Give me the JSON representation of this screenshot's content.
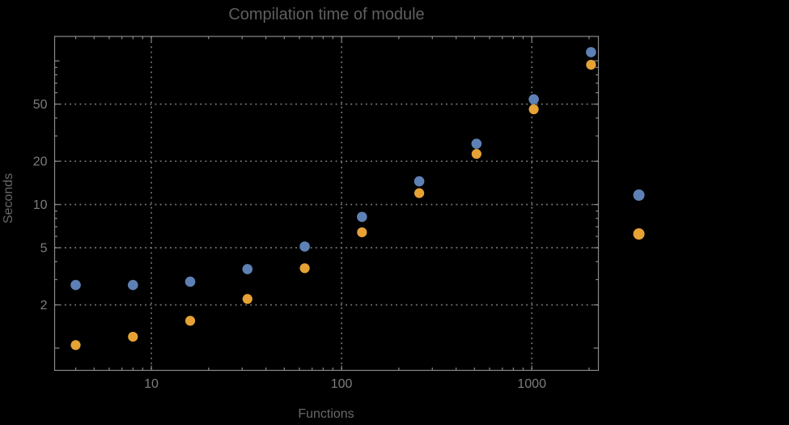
{
  "chart_data": {
    "type": "scatter",
    "title": "Compilation time of module",
    "xlabel": "Functions",
    "ylabel": "Seconds",
    "x_scale": "log",
    "y_scale": "log",
    "x": [
      4,
      8,
      16,
      32,
      64,
      128,
      256,
      512,
      1024,
      2048
    ],
    "series": [
      {
        "name": "blue",
        "color": "#5E81B5",
        "values": [
          2.75,
          2.75,
          2.9,
          3.55,
          5.1,
          8.2,
          14.5,
          26.5,
          54,
          115
        ]
      },
      {
        "name": "orange",
        "color": "#E6A235",
        "values": [
          1.05,
          1.2,
          1.55,
          2.2,
          3.6,
          6.4,
          12,
          22.5,
          46,
          94
        ]
      }
    ],
    "x_ticks": [
      10,
      100,
      1000
    ],
    "y_ticks": [
      2,
      5,
      10,
      20,
      50
    ],
    "xlim": [
      3.1,
      2240
    ],
    "ylim": [
      0.7,
      148
    ],
    "grid": "dotted",
    "legend": {
      "position": "right-outside",
      "markers_only": true
    },
    "colors": {
      "background": "#000000",
      "frame": "#8a8a8a",
      "grid": "#7a7a7a",
      "tick_label": "#7d7d7d",
      "title": "#5f5f5f",
      "axis_label": "#686868"
    }
  }
}
